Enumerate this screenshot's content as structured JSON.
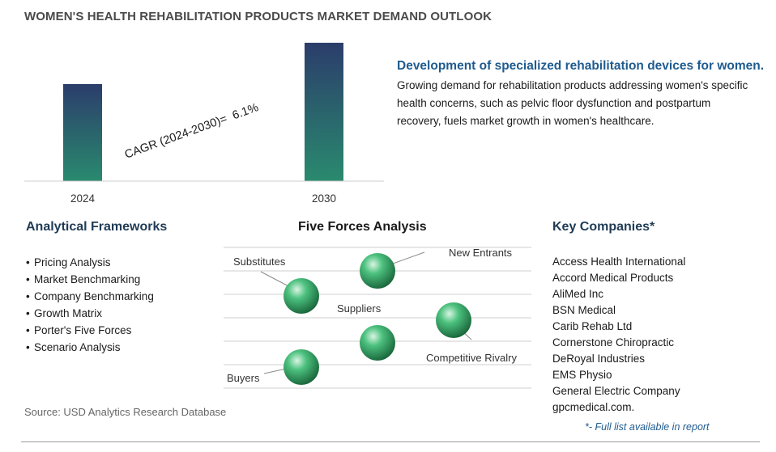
{
  "header": {
    "title": "WOMEN'S HEALTH REHABILITATION PRODUCTS MARKET DEMAND OUTLOOK"
  },
  "chart_data": {
    "type": "bar",
    "categories": [
      "2024",
      "2030"
    ],
    "values": [
      1.0,
      1.426
    ],
    "annotation": "CAGR (2024-2030)=  6.1%",
    "cagr_percent": 6.1,
    "ylim": [
      0,
      1.5
    ],
    "grid": false,
    "bar_color_top": "#2b3d6b",
    "bar_color_bottom": "#2a8a6e"
  },
  "highlight": {
    "headline": "Development of specialized rehabilitation devices for women.",
    "description": "Growing demand for rehabilitation products addressing women's specific health concerns, such as pelvic floor dysfunction and postpartum recovery, fuels market growth in women's healthcare."
  },
  "frameworks": {
    "title": "Analytical Frameworks",
    "items": [
      "Pricing Analysis",
      "Market Benchmarking",
      "Company Benchmarking",
      "Growth Matrix",
      "Porter's Five Forces",
      "Scenario Analysis"
    ]
  },
  "five_forces": {
    "title": "Five Forces Analysis",
    "labels": {
      "substitutes": "Substitutes",
      "new_entrants": "New Entrants",
      "suppliers": "Suppliers",
      "competitive_rivalry": "Competitive Rivalry",
      "buyers": "Buyers"
    },
    "sphere_color": "#2e9e5e"
  },
  "companies": {
    "title": "Key Companies*",
    "items": [
      "Access Health International",
      "Accord Medical Products",
      "AliMed Inc",
      "BSN Medical",
      "Carib Rehab Ltd",
      "Cornerstone Chiropractic",
      "DeRoyal Industries",
      "EMS Physio",
      "General Electric Company",
      "gpcmedical.com."
    ],
    "note": "*- Full list available in report"
  },
  "footer": {
    "source": "Source: USD Analytics Research Database"
  }
}
